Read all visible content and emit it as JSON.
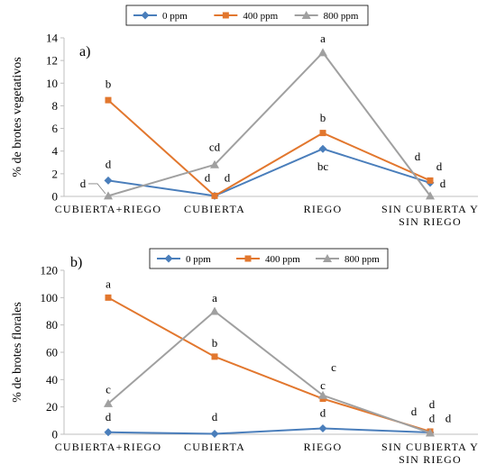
{
  "colors": {
    "0 ppm": "#4a7ebb",
    "400 ppm": "#e2772e",
    "800 ppm": "#a0a0a0",
    "axis": "#bfbfbf",
    "leader": "#808080"
  },
  "chart_data": [
    {
      "type": "line",
      "panel_label": "a)",
      "ylabel": "% de brotes vegetativos",
      "ylim": [
        0,
        14
      ],
      "yticks": [
        0,
        2,
        4,
        6,
        8,
        10,
        12,
        14
      ],
      "grid": false,
      "legend": "top-center",
      "categories": [
        "CUBIERTA+RIEGO",
        "CUBIERTA",
        "RIEGO",
        "SIN CUBIERTA Y|SIN RIEGO"
      ],
      "series": [
        {
          "name": "0 ppm",
          "marker": "diamond",
          "values": [
            1.4,
            0.05,
            4.2,
            1.2
          ]
        },
        {
          "name": "400 ppm",
          "marker": "square",
          "values": [
            8.5,
            0.05,
            5.6,
            1.4
          ]
        },
        {
          "name": "800 ppm",
          "marker": "triangle",
          "values": [
            0.05,
            2.8,
            12.7,
            0.05
          ]
        }
      ],
      "annotations": [
        {
          "text": "b",
          "cat": 0,
          "y": 9.6
        },
        {
          "text": "d",
          "cat": 0,
          "y": 2.5
        },
        {
          "text": "d",
          "cat": 0,
          "y": 0.8,
          "dx": -28,
          "leader": true
        },
        {
          "text": "cd",
          "cat": 1,
          "y": 4.0
        },
        {
          "text": "d",
          "cat": 1,
          "y": 1.3,
          "dx": -8
        },
        {
          "text": "d",
          "cat": 1,
          "y": 1.3,
          "dx": 14
        },
        {
          "text": "a",
          "cat": 2,
          "y": 13.6
        },
        {
          "text": "b",
          "cat": 2,
          "y": 6.6
        },
        {
          "text": "bc",
          "cat": 2,
          "y": 2.3
        },
        {
          "text": "d",
          "cat": 3,
          "y": 3.2,
          "dx": -14
        },
        {
          "text": "d",
          "cat": 3,
          "y": 2.3,
          "dx": 10
        },
        {
          "text": "d",
          "cat": 3,
          "y": 0.8,
          "dx": 14
        }
      ]
    },
    {
      "type": "line",
      "panel_label": "b)",
      "ylabel": "% de brotes florales",
      "ylim": [
        0,
        120
      ],
      "yticks": [
        0,
        20,
        40,
        60,
        80,
        100,
        120
      ],
      "grid": false,
      "legend": "top-center",
      "categories": [
        "CUBIERTA+RIEGO",
        "CUBIERTA",
        "RIEGO",
        "SIN CUBIERTA Y|SIN RIEGO"
      ],
      "series": [
        {
          "name": "0 ppm",
          "marker": "diamond",
          "values": [
            1.5,
            0.3,
            4.3,
            1.3
          ]
        },
        {
          "name": "400 ppm",
          "marker": "square",
          "values": [
            100,
            56.8,
            26,
            2.0
          ]
        },
        {
          "name": "800 ppm",
          "marker": "triangle",
          "values": [
            22.5,
            90,
            28.5,
            1.0
          ]
        }
      ],
      "annotations": [
        {
          "text": "a",
          "cat": 0,
          "y": 107
        },
        {
          "text": "c",
          "cat": 0,
          "y": 30
        },
        {
          "text": "d",
          "cat": 0,
          "y": 10
        },
        {
          "text": "a",
          "cat": 1,
          "y": 97
        },
        {
          "text": "b",
          "cat": 1,
          "y": 64
        },
        {
          "text": "d",
          "cat": 1,
          "y": 10
        },
        {
          "text": "c",
          "cat": 2,
          "y": 46,
          "dx": 12
        },
        {
          "text": "c",
          "cat": 2,
          "y": 33
        },
        {
          "text": "d",
          "cat": 2,
          "y": 13
        },
        {
          "text": "d",
          "cat": 3,
          "y": 14,
          "dx": -18
        },
        {
          "text": "d",
          "cat": 3,
          "y": 19,
          "dx": 2
        },
        {
          "text": "d",
          "cat": 3,
          "y": 9,
          "dx": 2
        },
        {
          "text": "d",
          "cat": 3,
          "y": 9,
          "dx": 20
        }
      ]
    }
  ]
}
